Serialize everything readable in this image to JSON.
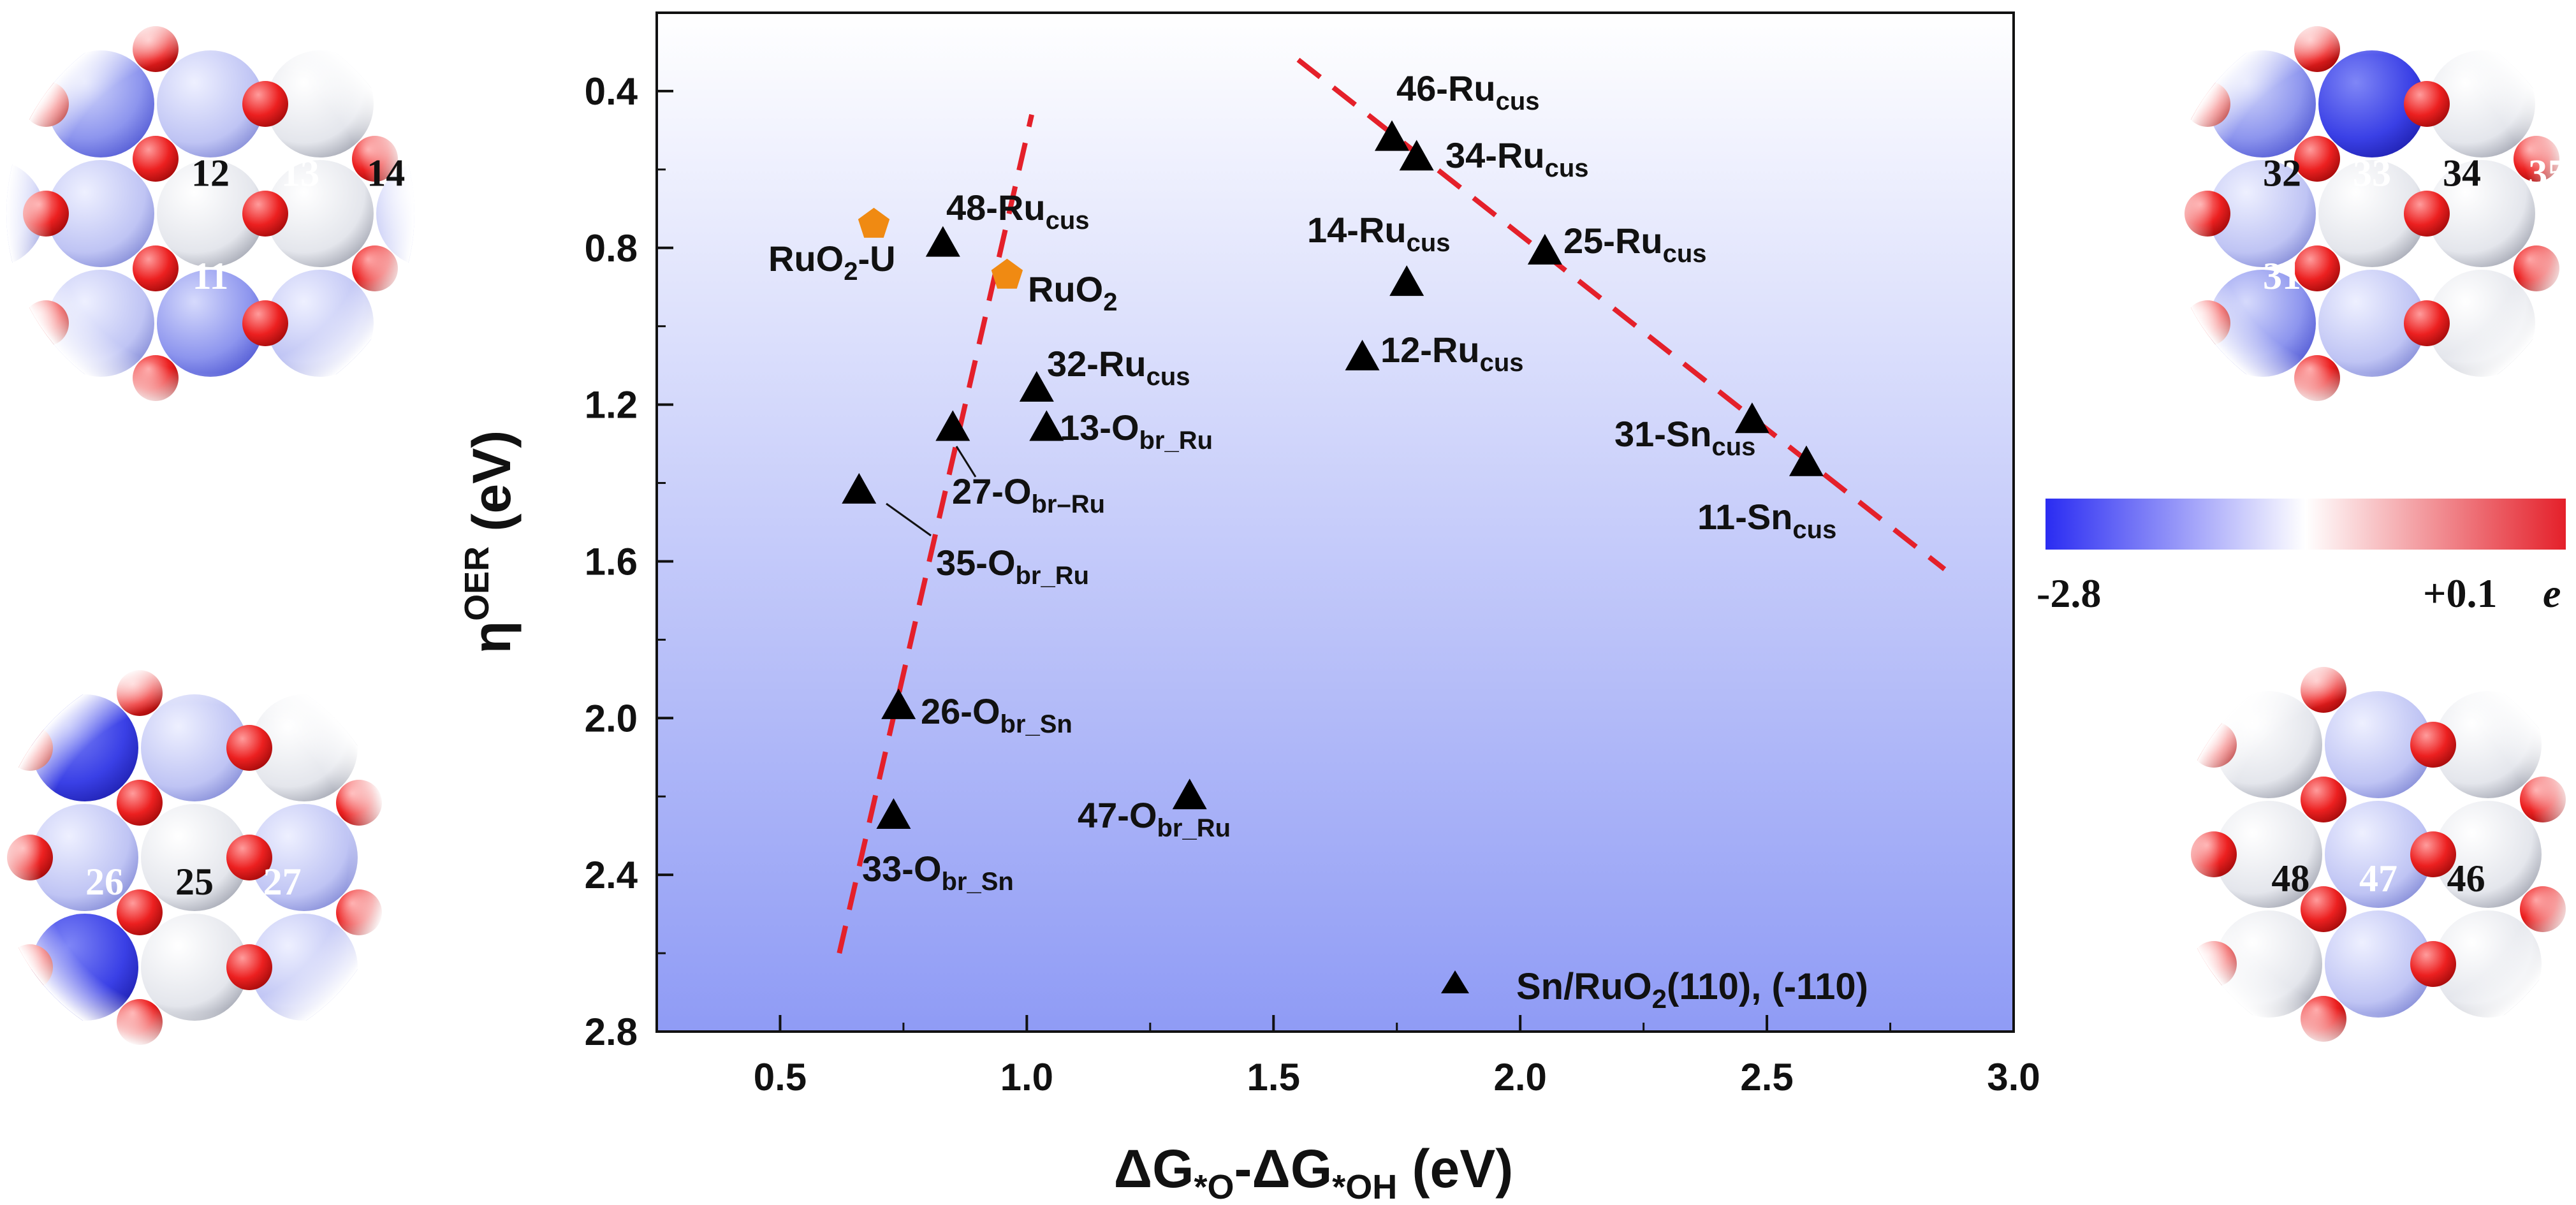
{
  "chart_data": {
    "type": "scatter",
    "xlabel": "ΔG*O-ΔG*OH (eV)",
    "ylabel": "ηOER (eV)",
    "xlim": [
      0.25,
      3.0
    ],
    "ylim": [
      2.8,
      0.2
    ],
    "y_inverted": true,
    "x_ticks": [
      0.5,
      1.0,
      1.5,
      2.0,
      2.5,
      3.0
    ],
    "x_tick_labels": [
      "0.5",
      "1.0",
      "1.5",
      "2.0",
      "2.5",
      "3.0"
    ],
    "y_ticks": [
      0.4,
      0.8,
      1.2,
      1.6,
      2.0,
      2.4,
      2.8
    ],
    "y_tick_labels": [
      "0.4",
      "0.8",
      "1.2",
      "1.6",
      "2.0",
      "2.4",
      "2.8"
    ],
    "background_gradient": [
      "#ffffff",
      "#8f9bf5"
    ],
    "series": [
      {
        "name": "Sn/RuO2(110), (-110)",
        "marker": "triangle",
        "color": "#000000",
        "points": [
          {
            "x": 1.74,
            "y": 0.52,
            "label": "46-Rucus"
          },
          {
            "x": 1.79,
            "y": 0.57,
            "label": "34-Rucus"
          },
          {
            "x": 1.77,
            "y": 0.89,
            "label": "14-Rucus"
          },
          {
            "x": 2.05,
            "y": 0.81,
            "label": "25-Rucus"
          },
          {
            "x": 1.68,
            "y": 1.08,
            "label": "12-Rucus"
          },
          {
            "x": 2.47,
            "y": 1.24,
            "label": "31-Sncus"
          },
          {
            "x": 2.58,
            "y": 1.35,
            "label": "11-Sncus"
          },
          {
            "x": 0.83,
            "y": 0.79,
            "label": "48-Rucus"
          },
          {
            "x": 1.02,
            "y": 1.16,
            "label": "32-Rucus"
          },
          {
            "x": 1.04,
            "y": 1.26,
            "label": "13-Obr_Ru"
          },
          {
            "x": 0.85,
            "y": 1.26,
            "label": "27-Obr_Ru"
          },
          {
            "x": 0.66,
            "y": 1.42,
            "label": "35-Obr_Ru"
          },
          {
            "x": 0.74,
            "y": 1.97,
            "label": "26-Obr_Sn"
          },
          {
            "x": 0.73,
            "y": 2.25,
            "label": "33-Obr_Sn"
          },
          {
            "x": 1.33,
            "y": 2.2,
            "label": "47-Obr_Ru"
          }
        ]
      },
      {
        "name": "",
        "marker": "pentagon",
        "color": "#f08a12",
        "points": [
          {
            "x": 0.69,
            "y": 0.74,
            "label": "RuO2-U"
          },
          {
            "x": 0.96,
            "y": 0.87,
            "label": "RuO2"
          }
        ]
      }
    ],
    "trend_lines": [
      {
        "x": [
          0.62,
          1.01
        ],
        "y": [
          2.6,
          0.46
        ],
        "color": "#e4202a",
        "style": "dashed"
      },
      {
        "x": [
          1.55,
          2.86
        ],
        "y": [
          0.32,
          1.62
        ],
        "color": "#e4202a",
        "style": "dashed"
      }
    ],
    "legend": {
      "entry": "Sn/RuO2(110), (-110)",
      "placement": "bottom-right"
    }
  },
  "colorbar": {
    "min_label": "-2.8",
    "max_label": "+0.1",
    "unit": "e",
    "colors": [
      "#2a2cf2",
      "#ffffff",
      "#e4202a"
    ]
  },
  "insets": [
    {
      "position": "top-left",
      "labels": [
        "12",
        "13",
        "14",
        "11"
      ]
    },
    {
      "position": "bottom-left",
      "labels": [
        "26",
        "25",
        "27"
      ]
    },
    {
      "position": "top-right",
      "labels": [
        "32",
        "33",
        "34",
        "35",
        "31"
      ]
    },
    {
      "position": "bottom-right",
      "labels": [
        "48",
        "47",
        "46"
      ]
    }
  ]
}
